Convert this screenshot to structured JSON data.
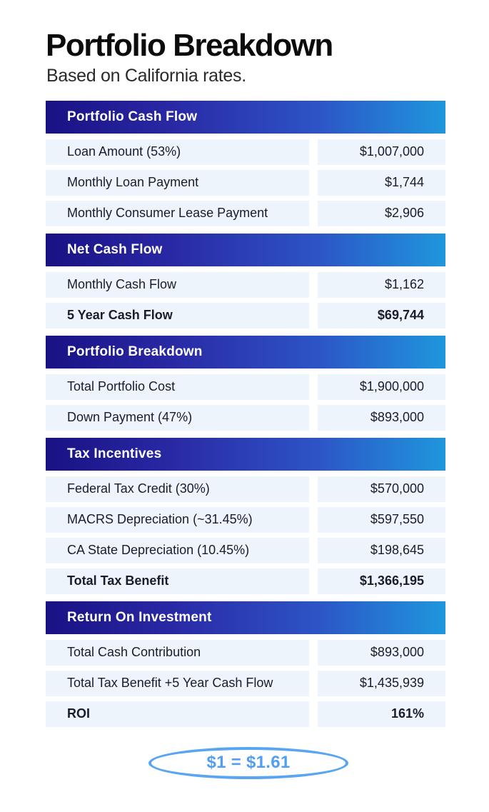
{
  "page": {
    "title": "Portfolio Breakdown",
    "subtitle": "Based on California rates.",
    "footer_badge": "$1 = $1.61"
  },
  "colors": {
    "header_gradient_start": "#191184",
    "header_gradient_mid1": "#2a2aa6",
    "header_gradient_mid2": "#2d54c6",
    "header_gradient_end": "#1e97dd",
    "row_background": "#eef4fb",
    "row_text": "#191d27",
    "badge_blue": "#5aa5f2"
  },
  "sections": [
    {
      "header": "Portfolio Cash Flow",
      "rows": [
        {
          "label": "Loan Amount (53%)",
          "value": "$1,007,000",
          "bold": false
        },
        {
          "label": "Monthly Loan Payment",
          "value": "$1,744",
          "bold": false
        },
        {
          "label": "Monthly Consumer Lease Payment",
          "value": "$2,906",
          "bold": false
        }
      ]
    },
    {
      "header": "Net Cash Flow",
      "rows": [
        {
          "label": "Monthly Cash Flow",
          "value": "$1,162",
          "bold": false
        },
        {
          "label": "5 Year Cash Flow",
          "value": "$69,744",
          "bold": true
        }
      ]
    },
    {
      "header": "Portfolio Breakdown",
      "rows": [
        {
          "label": "Total Portfolio Cost",
          "value": "$1,900,000",
          "bold": false
        },
        {
          "label": "Down Payment (47%)",
          "value": "$893,000",
          "bold": false
        }
      ]
    },
    {
      "header": "Tax Incentives",
      "rows": [
        {
          "label": "Federal Tax Credit (30%)",
          "value": "$570,000",
          "bold": false
        },
        {
          "label": "MACRS Depreciation (~31.45%)",
          "value": "$597,550",
          "bold": false
        },
        {
          "label": "CA State Depreciation (10.45%)",
          "value": "$198,645",
          "bold": false
        },
        {
          "label": "Total Tax Benefit",
          "value": "$1,366,195",
          "bold": true
        }
      ]
    },
    {
      "header": "Return On Investment",
      "rows": [
        {
          "label": "Total Cash Contribution",
          "value": "$893,000",
          "bold": false
        },
        {
          "label": "Total Tax Benefit +5 Year Cash Flow",
          "value": "$1,435,939",
          "bold": false
        },
        {
          "label": "ROI",
          "value": "161%",
          "bold": true
        }
      ]
    }
  ]
}
